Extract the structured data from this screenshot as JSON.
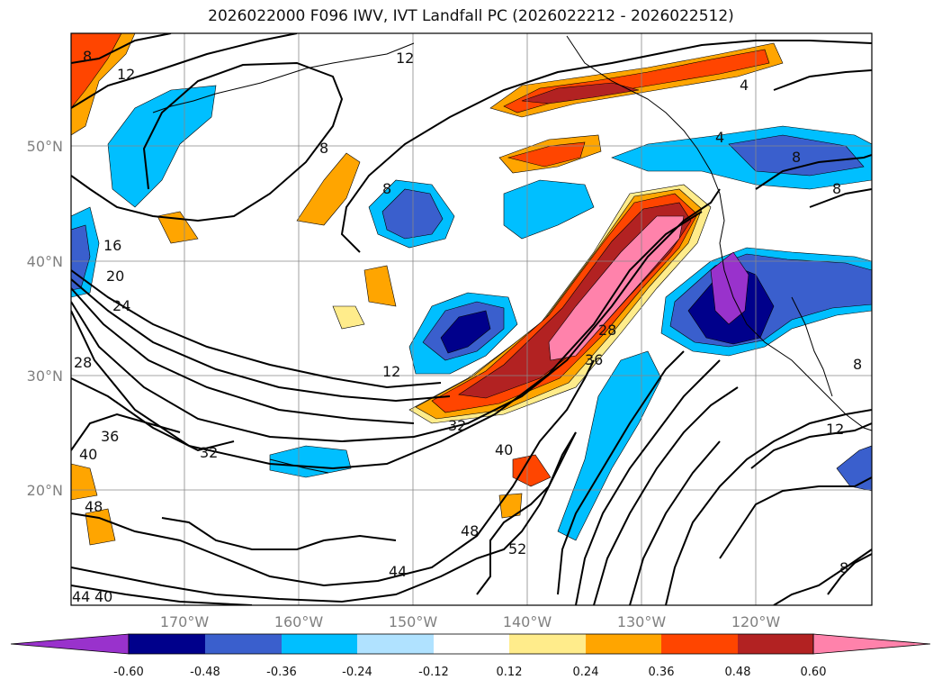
{
  "title": "2026022000 F096 IWV, IVT Landfall PC (2026022212 - 2026022512)",
  "lat_labels": [
    "50°N",
    "40°N",
    "30°N",
    "20°N"
  ],
  "lon_labels": [
    "170°W",
    "160°W",
    "150°W",
    "140°W",
    "130°W",
    "120°W"
  ],
  "colorbar": {
    "colors": [
      "#9932CC",
      "#00008B",
      "#3A5FCD",
      "#00BFFF",
      "#B0E2FF",
      "#FFFFFF",
      "#FFEC8B",
      "#FFA500",
      "#FF4500",
      "#B22222",
      "#FF82AB"
    ],
    "tick_labels": [
      "-0.60",
      "-0.48",
      "-0.36",
      "-0.24",
      "-0.12",
      "0.12",
      "0.24",
      "0.36",
      "0.48",
      "0.60"
    ]
  },
  "contour_labels": [
    "8",
    "12",
    "12",
    "8",
    "8",
    "4",
    "4",
    "8",
    "8",
    "16",
    "20",
    "24",
    "28",
    "36",
    "40",
    "32",
    "12",
    "32",
    "40",
    "28",
    "36",
    "44",
    "48",
    "52",
    "44",
    "40",
    "12",
    "8",
    "8",
    "48"
  ]
}
